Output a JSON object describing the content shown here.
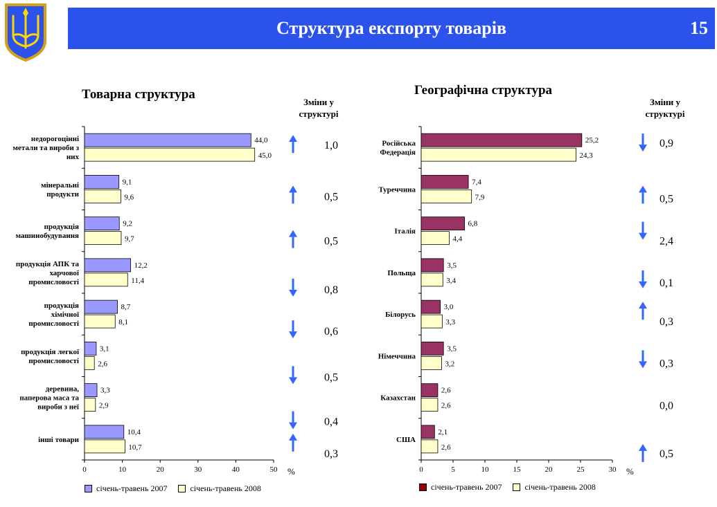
{
  "header": {
    "title": "Структура експорту товарів",
    "page_number": "15"
  },
  "colors": {
    "banner": "#2b52ea",
    "commodity_2007": "#9999ff",
    "commodity_2008": "#ffffcc",
    "geo_2007": "#993366",
    "geo_2008": "#ffffcc",
    "arrow": "#3366ff"
  },
  "icons": {
    "emblem": "trident-emblem-icon",
    "arrow_up": "arrow-up-icon",
    "arrow_down": "arrow-down-icon"
  },
  "changes_header": "Зміни у структурі",
  "chart_data": [
    {
      "type": "bar",
      "orientation": "horizontal",
      "title": "Товарна структура",
      "categories": [
        "недорогоцінні метали та вироби з них",
        "мінеральні продукти",
        "продукція машинобудування",
        "продукція АПК та харчової промисловості",
        "продукція хімічної промисловості",
        "продукція легкої промисловості",
        "деревина, паперова маса та вироби з неї",
        "інші товари"
      ],
      "series": [
        {
          "name": "січень-травень 2007",
          "values": [
            44.0,
            9.1,
            9.2,
            12.2,
            8.7,
            3.1,
            3.3,
            10.4
          ]
        },
        {
          "name": "січень-травень 2008",
          "values": [
            45.0,
            9.6,
            9.7,
            11.4,
            8.1,
            2.6,
            2.9,
            10.7
          ]
        }
      ],
      "value_labels_2007": [
        "44,0",
        "9,1",
        "9,2",
        "12,2",
        "8,7",
        "3,1",
        "3,3",
        "10,4"
      ],
      "value_labels_2008": [
        "45,0",
        "9,6",
        "9,7",
        "11,4",
        "8,1",
        "2,6",
        "2,9",
        "10,7"
      ],
      "changes": [
        {
          "direction": "up",
          "value": "1,0"
        },
        {
          "direction": "up",
          "value": "0,5"
        },
        {
          "direction": "up",
          "value": "0,5"
        },
        {
          "direction": "down",
          "value": "0,8"
        },
        {
          "direction": "down",
          "value": "0,6"
        },
        {
          "direction": "down",
          "value": "0,5"
        },
        {
          "direction": "down",
          "value": "0,4"
        },
        {
          "direction": "up",
          "value": "0,3"
        }
      ],
      "xlim": [
        0,
        50
      ],
      "x_ticks": [
        "0",
        "10",
        "20",
        "30",
        "40",
        "50"
      ],
      "xunit": "%",
      "legend_position": "bottom"
    },
    {
      "type": "bar",
      "orientation": "horizontal",
      "title": "Географічна структура",
      "categories": [
        "Російська Федерація",
        "Туреччина",
        "Італія",
        "Польща",
        "Білорусь",
        "Німеччина",
        "Казахстан",
        "США"
      ],
      "series": [
        {
          "name": "січень-травень 2007",
          "values": [
            25.2,
            7.4,
            6.8,
            3.5,
            3.0,
            3.5,
            2.6,
            2.1
          ]
        },
        {
          "name": "січень-травень 2008",
          "values": [
            24.3,
            7.9,
            4.4,
            3.4,
            3.3,
            3.2,
            2.6,
            2.6
          ]
        }
      ],
      "value_labels_2007": [
        "25,2",
        "7,4",
        "6,8",
        "3,5",
        "3,0",
        "3,5",
        "2,6",
        "2,1"
      ],
      "value_labels_2008": [
        "24,3",
        "7,9",
        "4,4",
        "3,4",
        "3,3",
        "3,2",
        "2,6",
        "2,6"
      ],
      "changes": [
        {
          "direction": "down",
          "value": "0,9"
        },
        {
          "direction": "up",
          "value": "0,5"
        },
        {
          "direction": "down",
          "value": "2,4"
        },
        {
          "direction": "down",
          "value": "0,1"
        },
        {
          "direction": "up",
          "value": "0,3"
        },
        {
          "direction": "down",
          "value": "0,3"
        },
        {
          "direction": "none",
          "value": "0,0"
        },
        {
          "direction": "up",
          "value": "0,5"
        }
      ],
      "xlim": [
        0,
        30
      ],
      "x_ticks": [
        "0",
        "5",
        "10",
        "15",
        "20",
        "25",
        "30"
      ],
      "xunit": "%",
      "legend_position": "bottom"
    }
  ]
}
